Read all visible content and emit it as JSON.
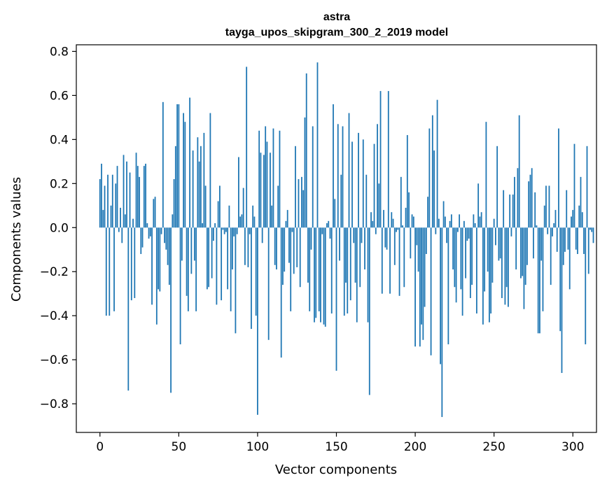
{
  "chart_data": {
    "type": "bar",
    "title": "astra",
    "subtitle": "tayga_upos_skipgram_300_2_2019 model",
    "xlabel": "Vector components",
    "ylabel": "Components values",
    "xlim": [
      -15,
      315
    ],
    "ylim": [
      -0.93,
      0.83
    ],
    "xticks": [
      0,
      50,
      100,
      150,
      200,
      250,
      300
    ],
    "yticks": [
      -0.8,
      -0.6,
      -0.4,
      -0.2,
      0.0,
      0.2,
      0.4,
      0.6,
      0.8
    ],
    "xtick_labels": [
      "0",
      "50",
      "100",
      "150",
      "200",
      "250",
      "300"
    ],
    "ytick_labels": [
      "−0.8",
      "−0.6",
      "−0.4",
      "−0.2",
      "0.0",
      "0.2",
      "0.4",
      "0.6",
      "0.8"
    ],
    "grid": false,
    "bar_color": "#1f77b4",
    "values": [
      0.22,
      0.29,
      0.08,
      0.19,
      -0.4,
      0.24,
      -0.4,
      0.1,
      0.24,
      -0.38,
      0.2,
      0.28,
      -0.02,
      0.09,
      -0.07,
      0.33,
      0.06,
      0.3,
      -0.74,
      0.25,
      -0.33,
      0.04,
      -0.32,
      0.34,
      0.28,
      0.23,
      -0.12,
      -0.09,
      0.28,
      0.29,
      0.02,
      -0.05,
      -0.04,
      -0.35,
      0.13,
      0.14,
      -0.44,
      -0.28,
      -0.29,
      -0.03,
      0.57,
      -0.07,
      -0.1,
      -0.17,
      -0.26,
      -0.75,
      0.06,
      0.22,
      0.37,
      0.56,
      0.56,
      -0.53,
      -0.15,
      0.52,
      0.48,
      -0.31,
      -0.38,
      0.59,
      -0.21,
      0.35,
      -0.15,
      -0.38,
      0.41,
      0.3,
      0.37,
      0.02,
      0.43,
      0.19,
      -0.28,
      -0.27,
      0.52,
      -0.23,
      -0.06,
      0.02,
      -0.35,
      0.12,
      0.19,
      -0.33,
      -0.01,
      -0.03,
      -0.02,
      -0.28,
      0.1,
      -0.38,
      -0.19,
      -0.04,
      -0.48,
      -0.03,
      0.32,
      0.05,
      0.06,
      0.18,
      -0.17,
      0.73,
      -0.18,
      -0.03,
      -0.46,
      0.1,
      0.05,
      -0.4,
      -0.85,
      0.44,
      0.34,
      -0.07,
      0.33,
      0.46,
      0.39,
      -0.51,
      0.34,
      0.1,
      0.45,
      -0.17,
      -0.19,
      0.19,
      0.44,
      -0.59,
      -0.26,
      -0.2,
      0.03,
      0.08,
      -0.16,
      -0.38,
      -0.02,
      -0.21,
      0.37,
      -0.18,
      0.22,
      -0.27,
      0.23,
      0.17,
      0.5,
      0.7,
      -0.25,
      -0.38,
      -0.1,
      0.46,
      -0.43,
      -0.41,
      0.75,
      -0.38,
      -0.43,
      -0.03,
      -0.44,
      -0.45,
      0.02,
      0.03,
      -0.05,
      -0.39,
      0.56,
      0.13,
      -0.65,
      0.47,
      -0.15,
      0.24,
      0.46,
      -0.4,
      -0.25,
      -0.39,
      0.52,
      -0.33,
      0.39,
      -0.07,
      -0.25,
      -0.43,
      0.43,
      -0.27,
      -0.07,
      0.4,
      -0.19,
      0.24,
      -0.43,
      -0.76,
      0.07,
      0.03,
      0.38,
      -0.03,
      0.47,
      0.2,
      0.62,
      -0.3,
      0.08,
      -0.09,
      -0.1,
      0.62,
      -0.3,
      0.07,
      0.04,
      -0.17,
      -0.02,
      -0.01,
      -0.31,
      0.23,
      0.01,
      -0.27,
      0.09,
      0.42,
      0.16,
      -0.14,
      0.06,
      0.05,
      -0.54,
      -0.08,
      -0.2,
      -0.54,
      -0.44,
      -0.51,
      -0.36,
      -0.12,
      0.14,
      0.45,
      -0.58,
      0.51,
      0.35,
      -0.03,
      0.58,
      0.04,
      -0.62,
      -0.86,
      0.12,
      0.05,
      -0.07,
      -0.53,
      0.03,
      0.06,
      -0.19,
      -0.27,
      -0.34,
      -0.02,
      0.06,
      -0.28,
      -0.4,
      0.03,
      -0.23,
      -0.06,
      -0.05,
      -0.32,
      -0.26,
      0.06,
      0.02,
      -0.39,
      0.2,
      0.05,
      0.07,
      -0.44,
      -0.29,
      0.48,
      -0.2,
      -0.43,
      -0.39,
      -0.25,
      0.04,
      -0.08,
      0.37,
      -0.15,
      -0.14,
      -0.32,
      0.17,
      -0.35,
      -0.27,
      -0.36,
      0.15,
      -0.04,
      0.15,
      0.23,
      -0.19,
      0.27,
      0.51,
      -0.23,
      -0.22,
      -0.37,
      -0.26,
      -0.17,
      0.21,
      0.24,
      0.27,
      -0.14,
      0.16,
      0.01,
      -0.48,
      -0.48,
      -0.15,
      -0.38,
      0.1,
      0.19,
      -0.03,
      0.19,
      -0.26,
      -0.04,
      0.02,
      0.08,
      -0.11,
      0.45,
      -0.47,
      -0.66,
      -0.17,
      -0.11,
      0.17,
      -0.1,
      -0.28,
      0.05,
      0.08,
      0.38,
      -0.1,
      -0.12,
      0.1,
      0.23,
      0.07,
      -0.12,
      -0.53,
      0.37,
      -0.21,
      -0.01,
      -0.02,
      -0.07
    ]
  }
}
